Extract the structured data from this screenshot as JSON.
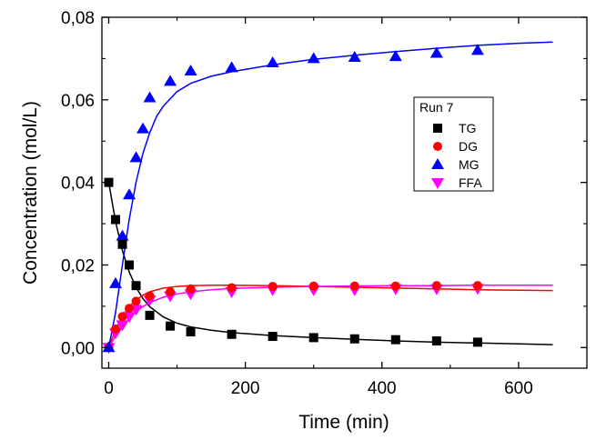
{
  "chart_data": {
    "type": "scatter",
    "xlabel": "Time (min)",
    "ylabel": "Concentration (mol/L)",
    "xlim": [
      -10,
      700
    ],
    "ylim": [
      -0.005,
      0.08
    ],
    "xticks": [
      0,
      200,
      400,
      600
    ],
    "xtick_labels": [
      "0",
      "200",
      "400",
      "600"
    ],
    "yticks": [
      0,
      0.02,
      0.04,
      0.06,
      0.08
    ],
    "ytick_labels": [
      "0,00",
      "0,02",
      "0,04",
      "0,06",
      "0,08"
    ],
    "legend_title": "Run 7",
    "legend_position": "top-right",
    "series": [
      {
        "name": "TG",
        "marker": "square",
        "color": "#000000",
        "x": [
          0,
          10,
          20,
          30,
          40,
          60,
          90,
          120,
          180,
          240,
          300,
          360,
          420,
          480,
          540
        ],
        "y": [
          0.04,
          0.031,
          0.025,
          0.02,
          0.015,
          0.0078,
          0.0052,
          0.0038,
          0.0032,
          0.0027,
          0.0024,
          0.0021,
          0.0019,
          0.0016,
          0.0013
        ],
        "fit": {
          "x": [
            0,
            10,
            20,
            30,
            40,
            50,
            60,
            80,
            100,
            120,
            150,
            180,
            240,
            300,
            360,
            420,
            480,
            540,
            600,
            650
          ],
          "y": [
            0.04,
            0.0305,
            0.0235,
            0.0183,
            0.0146,
            0.0119,
            0.0099,
            0.0074,
            0.0059,
            0.005,
            0.0042,
            0.0036,
            0.0029,
            0.0024,
            0.002,
            0.0016,
            0.0013,
            0.0011,
            0.0009,
            0.0007
          ]
        }
      },
      {
        "name": "DG",
        "marker": "circle",
        "color": "#ff0000",
        "x": [
          0,
          10,
          20,
          30,
          40,
          60,
          90,
          120,
          180,
          240,
          300,
          360,
          420,
          480,
          540
        ],
        "y": [
          0,
          0.0045,
          0.0075,
          0.0095,
          0.0112,
          0.0125,
          0.0135,
          0.0142,
          0.0145,
          0.0148,
          0.0149,
          0.0149,
          0.0149,
          0.015,
          0.015
        ],
        "fit": {
          "x": [
            0,
            10,
            20,
            30,
            40,
            50,
            60,
            80,
            100,
            120,
            150,
            180,
            240,
            300,
            360,
            420,
            480,
            540,
            600,
            650
          ],
          "y": [
            0,
            0.0044,
            0.0076,
            0.0099,
            0.0115,
            0.0127,
            0.0135,
            0.0144,
            0.0148,
            0.015,
            0.0151,
            0.0151,
            0.015,
            0.0148,
            0.0146,
            0.0144,
            0.0142,
            0.014,
            0.0139,
            0.0138
          ]
        }
      },
      {
        "name": "MG",
        "marker": "triangle-up",
        "color": "#0000ff",
        "x": [
          0,
          10,
          20,
          30,
          40,
          50,
          60,
          90,
          120,
          180,
          240,
          300,
          360,
          420,
          480,
          540
        ],
        "y": [
          0,
          0.0155,
          0.027,
          0.037,
          0.046,
          0.053,
          0.0605,
          0.0645,
          0.067,
          0.0678,
          0.069,
          0.07,
          0.0703,
          0.0705,
          0.0713,
          0.072
        ],
        "fit": {
          "x": [
            0,
            10,
            20,
            30,
            40,
            50,
            60,
            70,
            80,
            100,
            120,
            150,
            180,
            240,
            300,
            360,
            420,
            480,
            540,
            600,
            650
          ],
          "y": [
            0,
            0.0085,
            0.02,
            0.031,
            0.04,
            0.047,
            0.052,
            0.056,
            0.0585,
            0.062,
            0.064,
            0.0657,
            0.0668,
            0.0685,
            0.0698,
            0.0708,
            0.0717,
            0.0725,
            0.0732,
            0.0737,
            0.074
          ]
        }
      },
      {
        "name": "FFA",
        "marker": "triangle-down",
        "color": "#ff00ff",
        "x": [
          0,
          10,
          20,
          30,
          40,
          60,
          90,
          120,
          180,
          240,
          300,
          360,
          420,
          480,
          540
        ],
        "y": [
          0,
          0.0035,
          0.0055,
          0.0075,
          0.0092,
          0.0115,
          0.0125,
          0.013,
          0.0135,
          0.014,
          0.014,
          0.014,
          0.0142,
          0.0142,
          0.0143
        ],
        "fit": {
          "x": [
            0,
            10,
            20,
            30,
            40,
            50,
            60,
            80,
            100,
            120,
            150,
            180,
            240,
            300,
            360,
            420,
            480,
            540,
            600,
            650
          ],
          "y": [
            0,
            0.0028,
            0.0052,
            0.0071,
            0.0087,
            0.0099,
            0.0109,
            0.0122,
            0.013,
            0.0135,
            0.014,
            0.0143,
            0.0146,
            0.0148,
            0.0149,
            0.015,
            0.015,
            0.0151,
            0.0151,
            0.0151
          ]
        }
      }
    ]
  }
}
